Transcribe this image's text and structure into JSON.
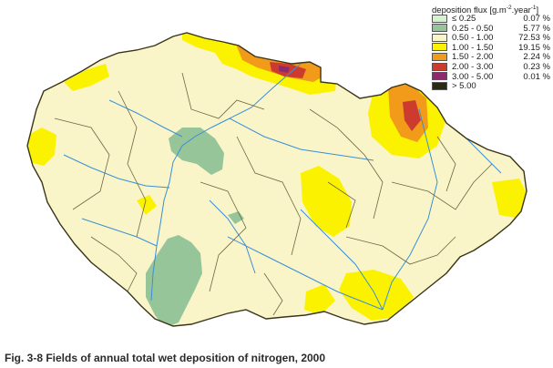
{
  "legend": {
    "title_prefix": "deposition flux [g.m",
    "title_exp1": "-2",
    "title_mid": ".year",
    "title_exp2": "-1",
    "title_suffix": "]",
    "classes": [
      {
        "range": "≤ 0.25",
        "percent": "0.07 %",
        "color": "#d4f2d0"
      },
      {
        "range": "0.25 - 0.50",
        "percent": "5.77 %",
        "color": "#97c59a"
      },
      {
        "range": "0.50 - 1.00",
        "percent": "72.53 %",
        "color": "#faf5c9"
      },
      {
        "range": "1.00 - 1.50",
        "percent": "19.15 %",
        "color": "#fbf200"
      },
      {
        "range": "1.50 - 2.00",
        "percent": "2.24 %",
        "color": "#f29a1a"
      },
      {
        "range": "2.00 - 3.00",
        "percent": "0.23 %",
        "color": "#cc3b2e"
      },
      {
        "range": "3.00 - 5.00",
        "percent": "0.01 %",
        "color": "#8d2a6e"
      },
      {
        "range": "> 5.00",
        "percent": "",
        "color": "#2b2a12"
      }
    ]
  },
  "caption": "Fig. 3-8  Fields of annual total wet deposition of nitrogen, 2000",
  "colors": {
    "base": "#faf5c9",
    "river": "#3a8fd6",
    "border": "#3a3418",
    "district": "#6b6640"
  }
}
